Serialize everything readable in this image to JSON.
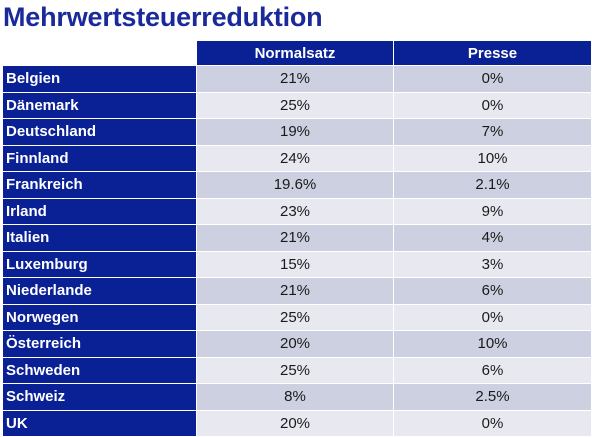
{
  "title": "Mehrwertsteuerreduktion",
  "columns": [
    "Normalsatz",
    "Presse"
  ],
  "rows": [
    {
      "country": "Belgien",
      "normalsatz": "21%",
      "presse": "0%"
    },
    {
      "country": "Dänemark",
      "normalsatz": "25%",
      "presse": "0%"
    },
    {
      "country": "Deutschland",
      "normalsatz": "19%",
      "presse": "7%"
    },
    {
      "country": "Finnland",
      "normalsatz": "24%",
      "presse": "10%"
    },
    {
      "country": "Frankreich",
      "normalsatz": "19.6%",
      "presse": "2.1%"
    },
    {
      "country": "Irland",
      "normalsatz": "23%",
      "presse": "9%"
    },
    {
      "country": "Italien",
      "normalsatz": "21%",
      "presse": "4%"
    },
    {
      "country": "Luxemburg",
      "normalsatz": "15%",
      "presse": "3%"
    },
    {
      "country": "Niederlande",
      "normalsatz": "21%",
      "presse": "6%"
    },
    {
      "country": "Norwegen",
      "normalsatz": "25%",
      "presse": "0%"
    },
    {
      "country": "Österreich",
      "normalsatz": "20%",
      "presse": "10%"
    },
    {
      "country": "Schweden",
      "normalsatz": "25%",
      "presse": "6%"
    },
    {
      "country": "Schweiz",
      "normalsatz": "8%",
      "presse": "2.5%"
    },
    {
      "country": "UK",
      "normalsatz": "20%",
      "presse": "0%"
    }
  ],
  "colors": {
    "header_bg": "#0a2196",
    "title": "#1a2a9a",
    "row_odd": "#cdd0e0",
    "row_even": "#e8e9f0"
  }
}
